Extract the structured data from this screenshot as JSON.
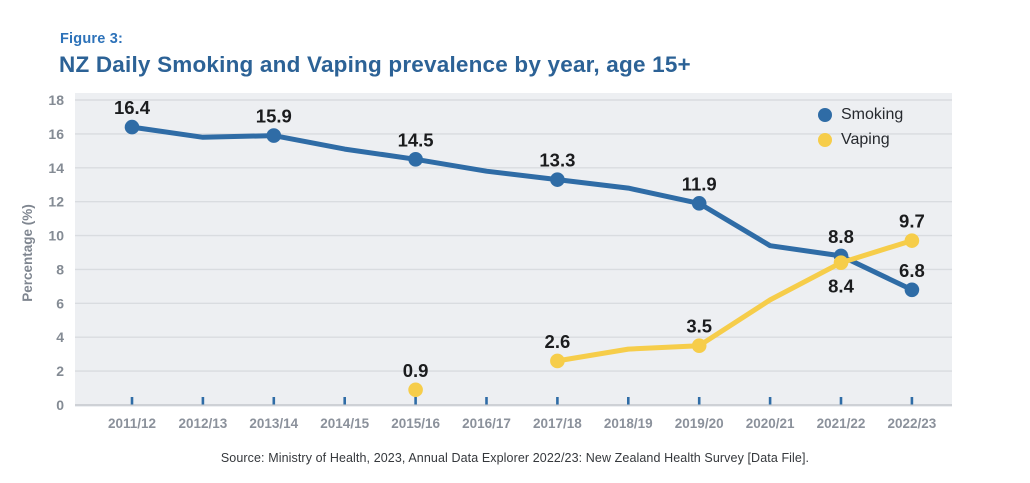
{
  "header": {
    "figure_label": "Figure 3:",
    "title": "NZ Daily Smoking and Vaping prevalence by year, age 15+"
  },
  "footer": {
    "source": "Source: Ministry of Health, 2023, Annual Data Explorer 2022/23: New Zealand Health Survey [Data File]."
  },
  "colors": {
    "smoking": "#2f6ca6",
    "vaping": "#f6cd4a",
    "title_blue": "#2c6296",
    "figure_label_blue": "#2d72b9",
    "plot_background": "#edeff2",
    "gridline": "#d9dce0",
    "axis_text": "#848b94",
    "data_label": "#1b1c1e"
  },
  "chart_data": {
    "type": "line",
    "title": "NZ Daily Smoking and Vaping prevalence by year, age 15+",
    "xlabel": "",
    "ylabel": "Percentage (%)",
    "ylim": [
      0,
      18
    ],
    "ytick_step": 2,
    "grid": true,
    "legend_position": "top-right",
    "categories": [
      "2011/12",
      "2012/13",
      "2013/14",
      "2014/15",
      "2015/16",
      "2016/17",
      "2017/18",
      "2018/19",
      "2019/20",
      "2020/21",
      "2021/22",
      "2022/23"
    ],
    "series": [
      {
        "name": "Smoking",
        "color": "#2f6ca6",
        "values": [
          16.4,
          15.8,
          15.9,
          15.1,
          14.5,
          13.8,
          13.3,
          12.8,
          11.9,
          9.4,
          8.8,
          6.8
        ],
        "labels": [
          16.4,
          null,
          15.9,
          null,
          14.5,
          null,
          13.3,
          null,
          11.9,
          null,
          8.8,
          6.8
        ],
        "label_positions": [
          "above",
          null,
          "above",
          null,
          "above",
          null,
          "above",
          null,
          "above",
          null,
          "above",
          "above"
        ]
      },
      {
        "name": "Vaping",
        "color": "#f6cd4a",
        "values": [
          null,
          null,
          null,
          null,
          0.9,
          null,
          2.6,
          3.3,
          3.5,
          6.2,
          8.4,
          9.7
        ],
        "labels": [
          null,
          null,
          null,
          null,
          0.9,
          null,
          2.6,
          null,
          3.5,
          null,
          8.4,
          9.7
        ],
        "label_positions": [
          null,
          null,
          null,
          null,
          "above",
          null,
          "above",
          null,
          "above",
          null,
          "below",
          "above"
        ]
      }
    ]
  }
}
